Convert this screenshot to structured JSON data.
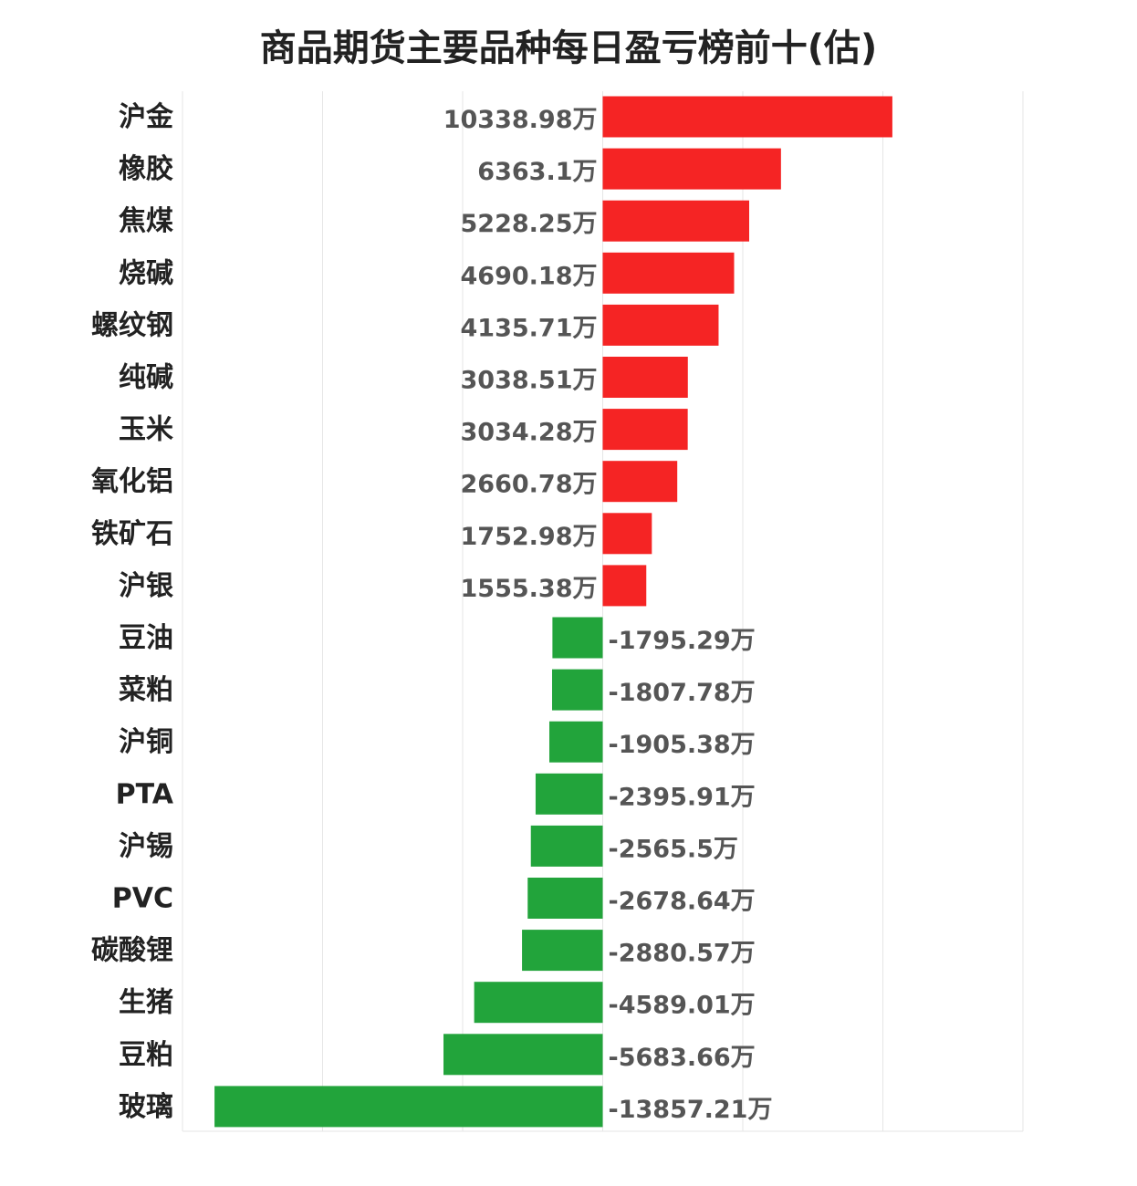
{
  "chart_data": {
    "type": "bar",
    "orientation": "horizontal",
    "title": "商品期货主要品种每日盈亏榜前十(估)",
    "unit_suffix": "万",
    "categories": [
      "沪金",
      "橡胶",
      "焦煤",
      "烧碱",
      "螺纹钢",
      "纯碱",
      "玉米",
      "氧化铝",
      "铁矿石",
      "沪银",
      "豆油",
      "菜粕",
      "沪铜",
      "PTA",
      "沪锡",
      "PVC",
      "碳酸锂",
      "生猪",
      "豆粕",
      "玻璃"
    ],
    "values": [
      10338.98,
      6363.1,
      5228.25,
      4690.18,
      4135.71,
      3038.51,
      3034.28,
      2660.78,
      1752.98,
      1555.38,
      -1795.29,
      -1807.78,
      -1905.38,
      -2395.91,
      -2565.5,
      -2678.64,
      -2880.57,
      -4589.01,
      -5683.66,
      -13857.21
    ],
    "value_labels": [
      "10338.98万",
      "6363.1万",
      "5228.25万",
      "4690.18万",
      "4135.71万",
      "3038.51万",
      "3034.28万",
      "2660.78万",
      "1752.98万",
      "1555.38万",
      "-1795.29万",
      "-1807.78万",
      "-1905.38万",
      "-2395.91万",
      "-2565.5万",
      "-2678.64万",
      "-2880.57万",
      "-4589.01万",
      "-5683.66万",
      "-13857.21万"
    ],
    "xlim": [
      -15000,
      15000
    ],
    "grid": true,
    "colors": {
      "positive": "#f52424",
      "negative": "#22a43b",
      "grid": "#e6e6e6"
    }
  }
}
